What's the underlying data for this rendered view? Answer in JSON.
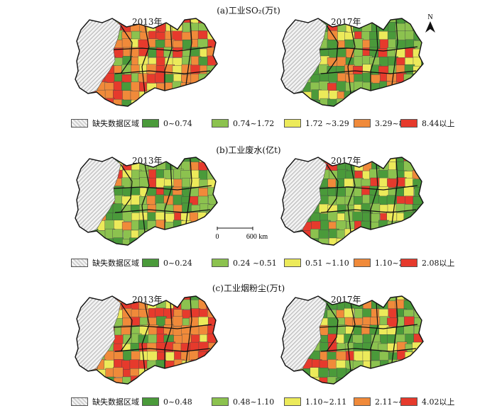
{
  "panels": [
    {
      "title": "(a)工业SO₂(万t)",
      "years": [
        "2013年",
        "2017年"
      ],
      "legend": [
        {
          "label": "缺失数据区域",
          "color": "hatch"
        },
        {
          "label": "0~0.74",
          "color": "#4a9a3a"
        },
        {
          "label": "0.74~1.72",
          "color": "#8cc24f"
        },
        {
          "label": "1.72 ~3.29",
          "color": "#ecea5a"
        },
        {
          "label": "3.29~8.44",
          "color": "#f08a3a"
        },
        {
          "label": "8.44以上",
          "color": "#e63a2c"
        }
      ],
      "weights_2013": [
        0.08,
        0.12,
        0.15,
        0.3,
        0.35
      ],
      "weights_2017": [
        0.35,
        0.3,
        0.12,
        0.13,
        0.1
      ]
    },
    {
      "title": "(b)工业废水(亿t)",
      "years": [
        "2013年",
        "2017年"
      ],
      "legend": [
        {
          "label": "缺失数据区域",
          "color": "hatch"
        },
        {
          "label": "0~0.24",
          "color": "#4a9a3a"
        },
        {
          "label": "0.24 ~0.51",
          "color": "#8cc24f"
        },
        {
          "label": "0.51 ~1.10",
          "color": "#ecea5a"
        },
        {
          "label": "1.10~2.08",
          "color": "#f08a3a"
        },
        {
          "label": "2.08以上",
          "color": "#e63a2c"
        }
      ],
      "weights_2013": [
        0.25,
        0.35,
        0.2,
        0.1,
        0.1
      ],
      "weights_2017": [
        0.35,
        0.3,
        0.15,
        0.1,
        0.1
      ]
    },
    {
      "title": "(c)工业烟粉尘(万t)",
      "years": [
        "2013年",
        "2017年"
      ],
      "legend": [
        {
          "label": "缺失数据区域",
          "color": "hatch"
        },
        {
          "label": "0~0.48",
          "color": "#4a9a3a"
        },
        {
          "label": "0.48~1.10",
          "color": "#8cc24f"
        },
        {
          "label": "1.10~2.11",
          "color": "#ecea5a"
        },
        {
          "label": "2.11~4.02",
          "color": "#f08a3a"
        },
        {
          "label": "4.02以上",
          "color": "#e63a2c"
        }
      ],
      "weights_2013": [
        0.08,
        0.12,
        0.15,
        0.3,
        0.35
      ],
      "weights_2017": [
        0.35,
        0.28,
        0.15,
        0.12,
        0.1
      ]
    }
  ],
  "north_label": "N",
  "scale": {
    "start": "0",
    "end": "600 km"
  }
}
